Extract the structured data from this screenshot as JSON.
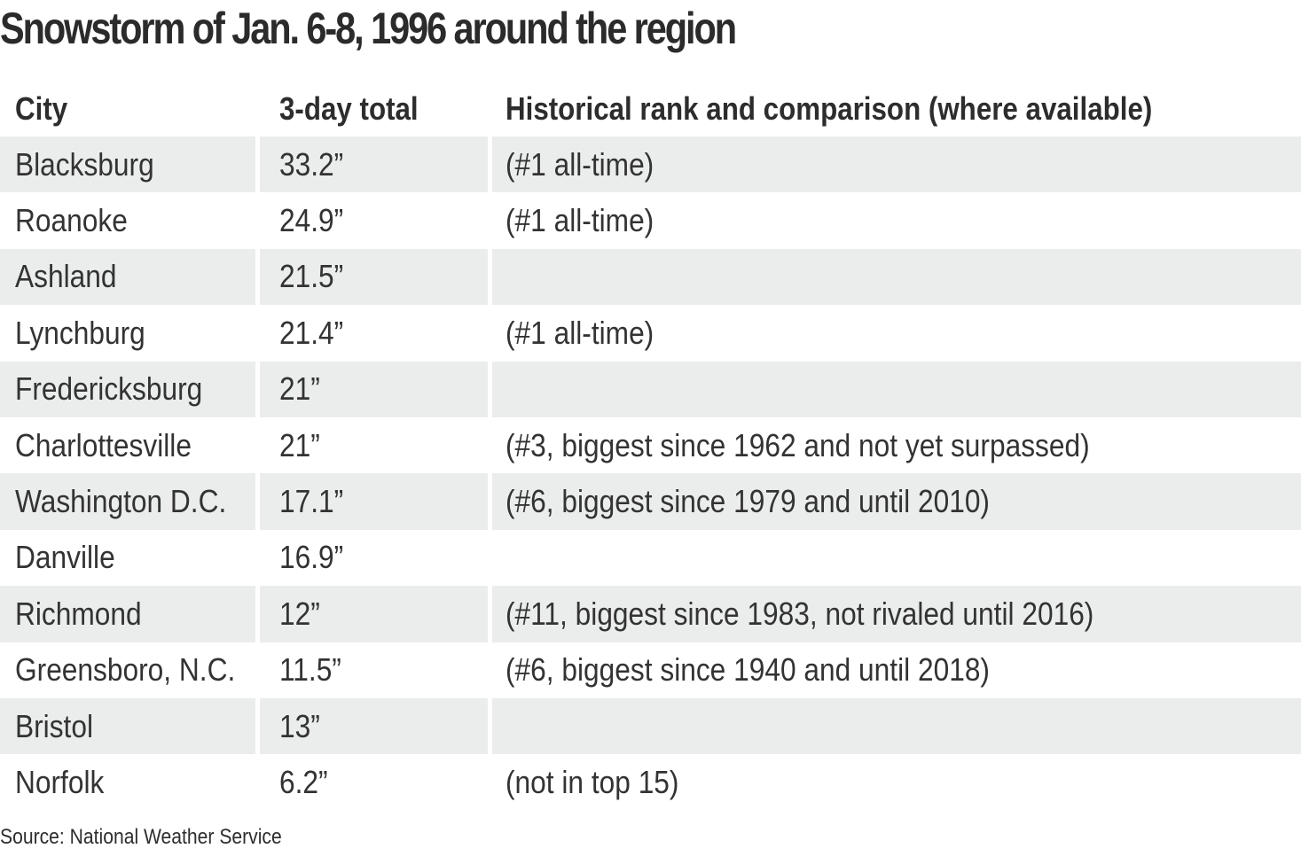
{
  "chart_data": {
    "type": "table",
    "title": "Snowstorm of Jan. 6-8, 1996 around the region",
    "columns": [
      "City",
      "3-day total",
      "Historical rank and comparison (where available)"
    ],
    "rows": [
      [
        "Blacksburg",
        "33.2”",
        "(#1 all-time)"
      ],
      [
        "Roanoke",
        "24.9”",
        "(#1 all-time)"
      ],
      [
        "Ashland",
        "21.5”",
        ""
      ],
      [
        "Lynchburg",
        "21.4”",
        "(#1 all-time)"
      ],
      [
        "Fredericksburg",
        "21”",
        ""
      ],
      [
        "Charlottesville",
        "21”",
        "(#3, biggest since 1962 and not yet surpassed)"
      ],
      [
        "Washington D.C.",
        "17.1”",
        "(#6, biggest since 1979 and until 2010)"
      ],
      [
        "Danville",
        "16.9”",
        ""
      ],
      [
        "Richmond",
        "12”",
        "(#11, biggest since 1983, not rivaled until 2016)"
      ],
      [
        "Greensboro, N.C.",
        "11.5”",
        "(#6, biggest since 1940 and until 2018)"
      ],
      [
        "Bristol",
        "13”",
        ""
      ],
      [
        "Norfolk",
        "6.2”",
        "(not in top 15)"
      ]
    ],
    "source": "Source: National Weather Service",
    "colors": {
      "shaded_row": "#ebecec",
      "text": "#333333"
    }
  }
}
